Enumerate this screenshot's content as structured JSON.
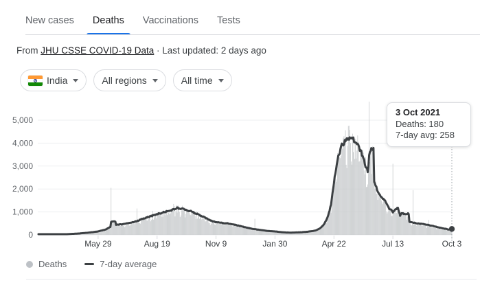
{
  "tabs": {
    "items": [
      {
        "label": "New cases",
        "active": false
      },
      {
        "label": "Deaths",
        "active": true
      },
      {
        "label": "Vaccinations",
        "active": false
      },
      {
        "label": "Tests",
        "active": false
      }
    ]
  },
  "source": {
    "prefix": "From ",
    "link": "JHU CSSE COVID-19 Data",
    "suffix": " · Last updated: 2 days ago"
  },
  "filters": {
    "country": {
      "label": "India",
      "icon": "india-flag"
    },
    "region": {
      "label": "All regions"
    },
    "time": {
      "label": "All time"
    }
  },
  "tooltip": {
    "title": "3 Oct 2021",
    "deaths_line": "Deaths: 180",
    "avg_line": "7-day avg: 258"
  },
  "legend": {
    "deaths_label": "Deaths",
    "avg_label": "7-day average"
  },
  "colors": {
    "accent_blue": "#1a73e8",
    "avg_line": "#3c4043",
    "daily_bars": "#c6c9cb",
    "gridline": "#edeff0",
    "tick": "#dadce0",
    "axis_text": "#5f6368",
    "crosshair": "#9aa0a6",
    "flag_saffron": "#ff9933",
    "flag_green": "#128807",
    "flag_navy": "#1a237e"
  },
  "chart_data": {
    "type": "area",
    "title": "COVID-19 deaths in India (daily deaths and 7-day average)",
    "x_range": [
      "2020-03-07",
      "2021-10-03"
    ],
    "y_axis": {
      "ticks": [
        0,
        1000,
        2000,
        3000,
        4000,
        5000
      ],
      "tick_labels": [
        "0",
        "1,000",
        "2,000",
        "3,000",
        "4,000",
        "5,000"
      ],
      "clip_max": 5810
    },
    "x_ticks": [
      {
        "date": "2020-05-29",
        "label": "May 29"
      },
      {
        "date": "2020-08-19",
        "label": "Aug 19"
      },
      {
        "date": "2020-11-09",
        "label": "Nov 9"
      },
      {
        "date": "2021-01-30",
        "label": "Jan 30"
      },
      {
        "date": "2021-04-22",
        "label": "Apr 22"
      },
      {
        "date": "2021-07-13",
        "label": "Jul 13"
      },
      {
        "date": "2021-10-03",
        "label": "Oct 3"
      }
    ],
    "legend_position": "bottom-left",
    "grid": true,
    "series": [
      {
        "name": "7-day average",
        "style": "line",
        "points": [
          [
            "2020-03-07",
            2
          ],
          [
            "2020-03-20",
            6
          ],
          [
            "2020-04-01",
            15
          ],
          [
            "2020-04-15",
            30
          ],
          [
            "2020-04-30",
            55
          ],
          [
            "2020-05-15",
            95
          ],
          [
            "2020-05-29",
            150
          ],
          [
            "2020-06-08",
            230
          ],
          [
            "2020-06-15",
            345
          ],
          [
            "2020-06-16",
            575
          ],
          [
            "2020-06-22",
            575
          ],
          [
            "2020-06-23",
            445
          ],
          [
            "2020-06-30",
            455
          ],
          [
            "2020-07-10",
            510
          ],
          [
            "2020-07-20",
            585
          ],
          [
            "2020-08-01",
            720
          ],
          [
            "2020-08-10",
            810
          ],
          [
            "2020-08-19",
            900
          ],
          [
            "2020-09-01",
            1025
          ],
          [
            "2020-09-09",
            1090
          ],
          [
            "2020-09-16",
            1170
          ],
          [
            "2020-09-22",
            1135
          ],
          [
            "2020-09-30",
            1080
          ],
          [
            "2020-10-08",
            990
          ],
          [
            "2020-10-16",
            880
          ],
          [
            "2020-10-24",
            760
          ],
          [
            "2020-11-01",
            630
          ],
          [
            "2020-11-09",
            550
          ],
          [
            "2020-11-16",
            525
          ],
          [
            "2020-11-24",
            505
          ],
          [
            "2020-12-02",
            465
          ],
          [
            "2020-12-10",
            405
          ],
          [
            "2020-12-18",
            345
          ],
          [
            "2020-12-25",
            295
          ],
          [
            "2021-01-01",
            250
          ],
          [
            "2021-01-10",
            210
          ],
          [
            "2021-01-20",
            172
          ],
          [
            "2021-01-30",
            150
          ],
          [
            "2021-02-08",
            118
          ],
          [
            "2021-02-15",
            102
          ],
          [
            "2021-02-22",
            98
          ],
          [
            "2021-03-01",
            106
          ],
          [
            "2021-03-08",
            116
          ],
          [
            "2021-03-15",
            132
          ],
          [
            "2021-03-22",
            162
          ],
          [
            "2021-03-29",
            205
          ],
          [
            "2021-04-04",
            320
          ],
          [
            "2021-04-09",
            500
          ],
          [
            "2021-04-14",
            830
          ],
          [
            "2021-04-18",
            1350
          ],
          [
            "2021-04-22",
            2300
          ],
          [
            "2021-04-27",
            3300
          ],
          [
            "2021-05-02",
            3850
          ],
          [
            "2021-05-08",
            4100
          ],
          [
            "2021-05-13",
            4200
          ],
          [
            "2021-05-18",
            4180
          ],
          [
            "2021-05-23",
            4060
          ],
          [
            "2021-05-29",
            3700
          ],
          [
            "2021-06-03",
            3200
          ],
          [
            "2021-06-08",
            2720
          ],
          [
            "2021-06-10",
            3400
          ],
          [
            "2021-06-13",
            3800
          ],
          [
            "2021-06-16",
            3760
          ],
          [
            "2021-06-17",
            2350
          ],
          [
            "2021-06-21",
            1950
          ],
          [
            "2021-06-26",
            1650
          ],
          [
            "2021-07-02",
            1480
          ],
          [
            "2021-07-08",
            1150
          ],
          [
            "2021-07-13",
            1000
          ],
          [
            "2021-07-20",
            1200
          ],
          [
            "2021-07-23",
            830
          ],
          [
            "2021-07-25",
            930
          ],
          [
            "2021-08-04",
            920
          ],
          [
            "2021-08-05",
            560
          ],
          [
            "2021-08-15",
            505
          ],
          [
            "2021-08-28",
            455
          ],
          [
            "2021-09-08",
            375
          ],
          [
            "2021-09-18",
            300
          ],
          [
            "2021-09-26",
            252
          ],
          [
            "2021-09-28",
            228
          ],
          [
            "2021-10-03",
            258
          ]
        ]
      },
      {
        "name": "Deaths",
        "style": "bars",
        "derivation": "daily values follow the 7-day average with day-to-day variation",
        "spike_days": {
          "2020-06-16": 2050,
          "2020-07-22": 1150,
          "2020-08-13": 1050,
          "2020-09-11": 1350,
          "2020-10-18": 850,
          "2021-01-02": 700,
          "2021-06-10": 6148,
          "2021-07-13": 3100,
          "2021-08-10": 1950,
          "2021-09-01": 650
        }
      }
    ],
    "highlight_point": {
      "date": "2021-10-03",
      "deaths": 180,
      "avg": 258
    }
  }
}
